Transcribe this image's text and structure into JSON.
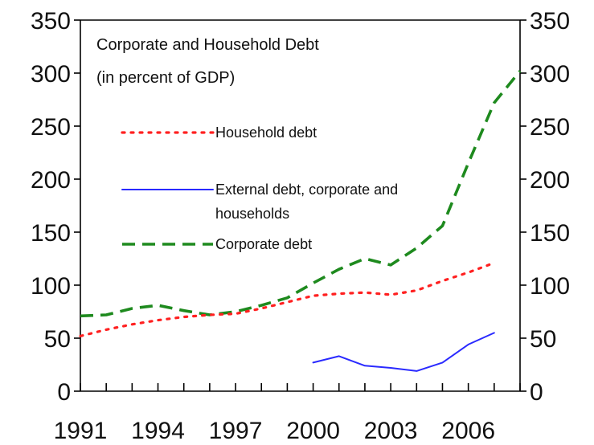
{
  "chart_data": {
    "type": "line",
    "title": "Corporate and Household Debt",
    "subtitle": "(in percent of GDP)",
    "x": [
      1991,
      1992,
      1993,
      1994,
      1995,
      1996,
      1997,
      1998,
      1999,
      2000,
      2001,
      2002,
      2003,
      2004,
      2005,
      2006,
      2007
    ],
    "x_tick_labels": [
      "1991",
      "1994",
      "1997",
      "2000",
      "2003",
      "2006"
    ],
    "xlim": [
      1991,
      2008
    ],
    "ylim": [
      0,
      350
    ],
    "y_ticks": [
      0,
      50,
      100,
      150,
      200,
      250,
      300,
      350
    ],
    "y_tick_labels": [
      "0",
      "50",
      "100",
      "150",
      "200",
      "250",
      "300",
      "350"
    ],
    "right_axis": true,
    "grid": false,
    "legend_position": "top-left",
    "series": [
      {
        "name": "Household debt",
        "color": "#ff2020",
        "style": "dotted",
        "x": [
          1991,
          1992,
          1993,
          1994,
          1995,
          1996,
          1997,
          1998,
          1999,
          2000,
          2001,
          2002,
          2003,
          2004,
          2005,
          2006,
          2007
        ],
        "values": [
          52,
          58,
          63,
          67,
          70,
          72,
          73,
          78,
          84,
          90,
          92,
          93,
          91,
          95,
          104,
          112,
          121
        ]
      },
      {
        "name": "External debt, corporate and households",
        "name_lines": [
          "External debt, corporate and",
          "households"
        ],
        "color": "#2a2aff",
        "style": "solid",
        "x": [
          2000,
          2001,
          2002,
          2003,
          2004,
          2005,
          2006,
          2007
        ],
        "values": [
          27,
          33,
          24,
          22,
          19,
          27,
          44,
          55
        ]
      },
      {
        "name": "Corporate debt",
        "color": "#1e8a1e",
        "style": "dashed",
        "x": [
          1991,
          1992,
          1993,
          1994,
          1995,
          1996,
          1997,
          1998,
          1999,
          2000,
          2001,
          2002,
          2003,
          2004,
          2005,
          2006,
          2007,
          2008
        ],
        "values": [
          71,
          72,
          78,
          81,
          76,
          72,
          75,
          81,
          88,
          102,
          115,
          125,
          119,
          135,
          156,
          215,
          272,
          302
        ]
      }
    ]
  }
}
